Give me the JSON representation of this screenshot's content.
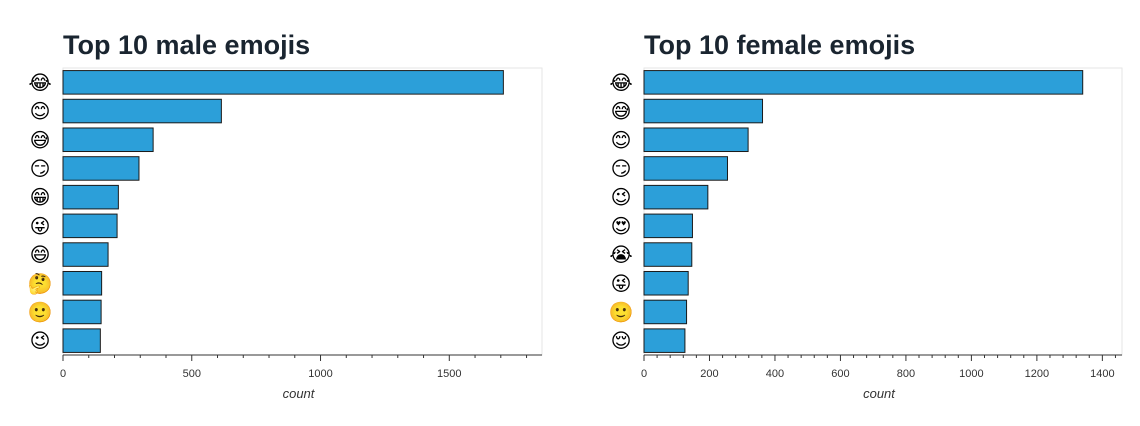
{
  "charts": [
    {
      "title": "Top 10 male emojis",
      "xlabel": "count",
      "ticks": [
        0,
        500,
        1000,
        1500
      ],
      "chart_data_index": 0
    },
    {
      "title": "Top 10 female emojis",
      "xlabel": "count",
      "ticks": [
        0,
        200,
        400,
        600,
        800,
        1000,
        1200,
        1400
      ],
      "chart_data_index": 1
    }
  ],
  "colors": {
    "bar_fill": "#2c9fd9",
    "bar_stroke": "#1a1a1a",
    "grid": "#e6e6e6",
    "title": "#1a2530"
  },
  "chart_data": [
    {
      "type": "bar",
      "orientation": "horizontal",
      "title": "Top 10 male emojis",
      "xlabel": "count",
      "ylabel": "",
      "xlim": [
        0,
        1860
      ],
      "categories": [
        "😂",
        "😊",
        "😅",
        "😏",
        "😁",
        "😜",
        "😄",
        "🤔",
        "🙂",
        "😉"
      ],
      "values": [
        1710,
        615,
        350,
        295,
        215,
        210,
        175,
        150,
        148,
        145
      ]
    },
    {
      "type": "bar",
      "orientation": "horizontal",
      "title": "Top 10 female emojis",
      "xlabel": "count",
      "ylabel": "",
      "xlim": [
        0,
        1460
      ],
      "categories": [
        "😂",
        "😅",
        "😊",
        "😏",
        "😉",
        "😍",
        "😭",
        "😜",
        "🙂",
        "😌"
      ],
      "values": [
        1340,
        362,
        318,
        255,
        195,
        148,
        146,
        135,
        130,
        125
      ]
    }
  ]
}
